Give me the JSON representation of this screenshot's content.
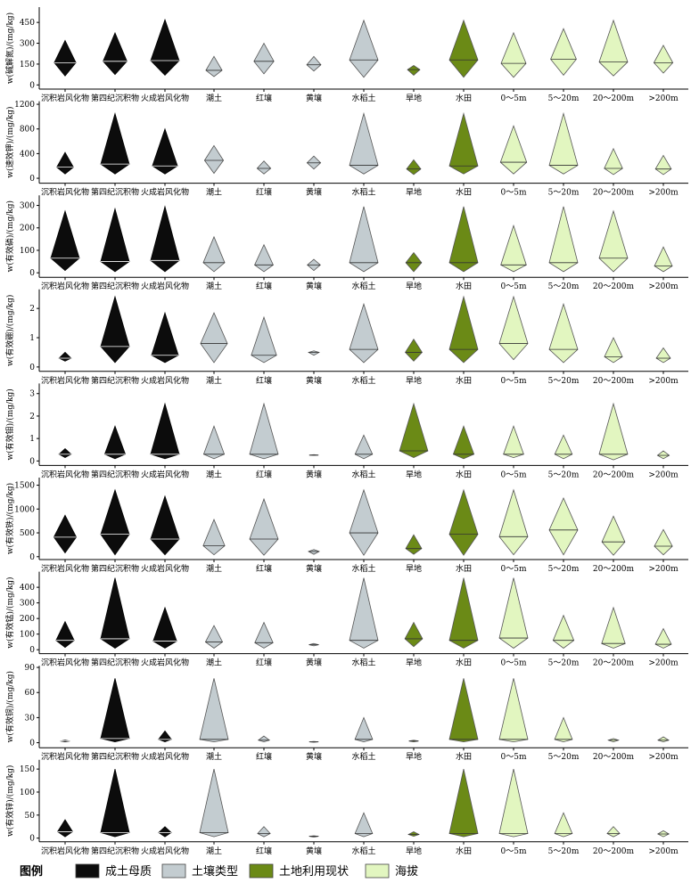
{
  "figure": {
    "categories": [
      "沉积岩风化物",
      "第四纪沉积物",
      "火成岩风化物",
      "潮土",
      "红壤",
      "黄壤",
      "水稻土",
      "旱地",
      "水田",
      "0～5m",
      "5～20m",
      "20～200m",
      ">200m"
    ],
    "category_groups": [
      0,
      0,
      0,
      1,
      1,
      1,
      1,
      2,
      2,
      3,
      3,
      3,
      3
    ],
    "group_colors": [
      "#0c0c0c",
      "#c3ccd0",
      "#6b8a16",
      "#e2f6c0"
    ],
    "legend": {
      "title": "图例",
      "items": [
        "成土母质",
        "土壤类型",
        "土地利用现状",
        "海拔"
      ]
    }
  },
  "chart_data": [
    {
      "type": "violin",
      "ylabel": "w(碱解氮)/(mg/kg)",
      "ylim": [
        -30,
        560
      ],
      "yticks": [
        0,
        150,
        300,
        450
      ],
      "series": [
        {
          "category": "沉积岩风化物",
          "min": 65,
          "max": 320,
          "median": 160
        },
        {
          "category": "第四纪沉积物",
          "min": 75,
          "max": 375,
          "median": 170
        },
        {
          "category": "火成岩风化物",
          "min": 70,
          "max": 470,
          "median": 175
        },
        {
          "category": "潮土",
          "min": 60,
          "max": 205,
          "median": 105
        },
        {
          "category": "红壤",
          "min": 80,
          "max": 300,
          "median": 170
        },
        {
          "category": "黄壤",
          "min": 100,
          "max": 205,
          "median": 145
        },
        {
          "category": "水稻土",
          "min": 55,
          "max": 465,
          "median": 180
        },
        {
          "category": "旱地",
          "min": 70,
          "max": 140,
          "median": 110
        },
        {
          "category": "水田",
          "min": 55,
          "max": 465,
          "median": 180
        },
        {
          "category": "0～5m",
          "min": 55,
          "max": 375,
          "median": 155
        },
        {
          "category": "5～20m",
          "min": 70,
          "max": 405,
          "median": 185
        },
        {
          "category": "20～200m",
          "min": 65,
          "max": 465,
          "median": 165
        },
        {
          "category": ">200m",
          "min": 85,
          "max": 285,
          "median": 160
        }
      ]
    },
    {
      "type": "violin",
      "ylabel": "w(速效钾)/(mg/kg)",
      "ylim": [
        -80,
        1250
      ],
      "yticks": [
        0,
        400,
        800,
        1200
      ],
      "series": [
        {
          "category": "沉积岩风化物",
          "min": 70,
          "max": 420,
          "median": 180
        },
        {
          "category": "第四纪沉积物",
          "min": 70,
          "max": 1050,
          "median": 230
        },
        {
          "category": "火成岩风化物",
          "min": 70,
          "max": 800,
          "median": 200
        },
        {
          "category": "潮土",
          "min": 80,
          "max": 530,
          "median": 290
        },
        {
          "category": "红壤",
          "min": 70,
          "max": 280,
          "median": 160
        },
        {
          "category": "黄壤",
          "min": 150,
          "max": 360,
          "median": 250
        },
        {
          "category": "水稻土",
          "min": 70,
          "max": 1050,
          "median": 210
        },
        {
          "category": "旱地",
          "min": 60,
          "max": 300,
          "median": 150
        },
        {
          "category": "水田",
          "min": 70,
          "max": 1050,
          "median": 200
        },
        {
          "category": "0～5m",
          "min": 70,
          "max": 850,
          "median": 260
        },
        {
          "category": "5～20m",
          "min": 70,
          "max": 1050,
          "median": 210
        },
        {
          "category": "20～200m",
          "min": 60,
          "max": 480,
          "median": 160
        },
        {
          "category": ">200m",
          "min": 60,
          "max": 370,
          "median": 150
        }
      ]
    },
    {
      "type": "violin",
      "ylabel": "w(有效磷)/(mg/kg)",
      "ylim": [
        -20,
        345
      ],
      "yticks": [
        0,
        100,
        200,
        300
      ],
      "series": [
        {
          "category": "沉积岩风化物",
          "min": 10,
          "max": 275,
          "median": 65
        },
        {
          "category": "第四纪沉积物",
          "min": 5,
          "max": 285,
          "median": 50
        },
        {
          "category": "火成岩风化物",
          "min": 5,
          "max": 295,
          "median": 55
        },
        {
          "category": "潮土",
          "min": 5,
          "max": 160,
          "median": 45
        },
        {
          "category": "红壤",
          "min": 5,
          "max": 125,
          "median": 35
        },
        {
          "category": "黄壤",
          "min": 10,
          "max": 60,
          "median": 35
        },
        {
          "category": "水稻土",
          "min": 5,
          "max": 295,
          "median": 45
        },
        {
          "category": "旱地",
          "min": 5,
          "max": 90,
          "median": 45
        },
        {
          "category": "水田",
          "min": 5,
          "max": 295,
          "median": 45
        },
        {
          "category": "0～5m",
          "min": 5,
          "max": 210,
          "median": 35
        },
        {
          "category": "5～20m",
          "min": 5,
          "max": 295,
          "median": 45
        },
        {
          "category": "20～200m",
          "min": 5,
          "max": 275,
          "median": 65
        },
        {
          "category": ">200m",
          "min": 5,
          "max": 115,
          "median": 30
        }
      ]
    },
    {
      "type": "violin",
      "ylabel": "w(有效硼)/(mg/kg)",
      "ylim": [
        -0.15,
        2.65
      ],
      "yticks": [
        0,
        1,
        2
      ],
      "series": [
        {
          "category": "沉积岩风化物",
          "min": 0.2,
          "max": 0.5,
          "median": 0.3
        },
        {
          "category": "第四纪沉积物",
          "min": 0.15,
          "max": 2.4,
          "median": 0.7
        },
        {
          "category": "火成岩风化物",
          "min": 0.15,
          "max": 1.85,
          "median": 0.4
        },
        {
          "category": "潮土",
          "min": 0.15,
          "max": 1.85,
          "median": 0.8
        },
        {
          "category": "红壤",
          "min": 0.15,
          "max": 1.7,
          "median": 0.4
        },
        {
          "category": "黄壤",
          "min": 0.4,
          "max": 0.55,
          "median": 0.5
        },
        {
          "category": "水稻土",
          "min": 0.15,
          "max": 2.15,
          "median": 0.6
        },
        {
          "category": "旱地",
          "min": 0.2,
          "max": 0.95,
          "median": 0.5
        },
        {
          "category": "水田",
          "min": 0.15,
          "max": 2.4,
          "median": 0.6
        },
        {
          "category": "0～5m",
          "min": 0.25,
          "max": 2.4,
          "median": 0.8
        },
        {
          "category": "5～20m",
          "min": 0.15,
          "max": 2.15,
          "median": 0.6
        },
        {
          "category": "20～200m",
          "min": 0.15,
          "max": 1.0,
          "median": 0.35
        },
        {
          "category": ">200m",
          "min": 0.15,
          "max": 0.65,
          "median": 0.3
        }
      ]
    },
    {
      "type": "violin",
      "ylabel": "w(有效钼)/(mg/kg)",
      "ylim": [
        -0.2,
        3.45
      ],
      "yticks": [
        0,
        1,
        2,
        3
      ],
      "series": [
        {
          "category": "沉积岩风化物",
          "min": 0.15,
          "max": 0.55,
          "median": 0.3
        },
        {
          "category": "第四纪沉积物",
          "min": 0.1,
          "max": 1.55,
          "median": 0.3
        },
        {
          "category": "火成岩风化物",
          "min": 0.1,
          "max": 2.55,
          "median": 0.3
        },
        {
          "category": "潮土",
          "min": 0.1,
          "max": 1.55,
          "median": 0.3
        },
        {
          "category": "红壤",
          "min": 0.1,
          "max": 2.55,
          "median": 0.3
        },
        {
          "category": "黄壤",
          "min": 0.25,
          "max": 0.28,
          "median": 0.26
        },
        {
          "category": "水稻土",
          "min": 0.1,
          "max": 1.15,
          "median": 0.3
        },
        {
          "category": "旱地",
          "min": 0.15,
          "max": 2.55,
          "median": 0.45
        },
        {
          "category": "水田",
          "min": 0.1,
          "max": 1.55,
          "median": 0.3
        },
        {
          "category": "0～5m",
          "min": 0.15,
          "max": 1.55,
          "median": 0.3
        },
        {
          "category": "5～20m",
          "min": 0.1,
          "max": 1.15,
          "median": 0.3
        },
        {
          "category": "20～200m",
          "min": 0.05,
          "max": 2.55,
          "median": 0.3
        },
        {
          "category": ">200m",
          "min": 0.1,
          "max": 0.45,
          "median": 0.25
        }
      ]
    },
    {
      "type": "violin",
      "ylabel": "w(有效铁)/(mg/kg)",
      "ylim": [
        -60,
        1660
      ],
      "yticks": [
        0,
        500,
        1000,
        1500
      ],
      "series": [
        {
          "category": "沉积岩风化物",
          "min": 80,
          "max": 870,
          "median": 410
        },
        {
          "category": "第四纪沉积物",
          "min": 40,
          "max": 1400,
          "median": 470
        },
        {
          "category": "火成岩风化物",
          "min": 40,
          "max": 1270,
          "median": 370
        },
        {
          "category": "潮土",
          "min": 40,
          "max": 780,
          "median": 230
        },
        {
          "category": "红壤",
          "min": 30,
          "max": 1210,
          "median": 370
        },
        {
          "category": "黄壤",
          "min": 50,
          "max": 150,
          "median": 110
        },
        {
          "category": "水稻土",
          "min": 30,
          "max": 1400,
          "median": 500
        },
        {
          "category": "旱地",
          "min": 50,
          "max": 460,
          "median": 170
        },
        {
          "category": "水田",
          "min": 30,
          "max": 1400,
          "median": 470
        },
        {
          "category": "0～5m",
          "min": 40,
          "max": 1400,
          "median": 420
        },
        {
          "category": "5～20m",
          "min": 40,
          "max": 1230,
          "median": 560
        },
        {
          "category": "20～200m",
          "min": 30,
          "max": 850,
          "median": 310
        },
        {
          "category": ">200m",
          "min": 40,
          "max": 570,
          "median": 220
        }
      ]
    },
    {
      "type": "violin",
      "ylabel": "w(有效锰)/(mg/kg)",
      "ylim": [
        -25,
        500
      ],
      "yticks": [
        0,
        100,
        200,
        300,
        400
      ],
      "series": [
        {
          "category": "沉积岩风化物",
          "min": 15,
          "max": 180,
          "median": 60
        },
        {
          "category": "第四纪沉积物",
          "min": 10,
          "max": 460,
          "median": 70
        },
        {
          "category": "火成岩风化物",
          "min": 10,
          "max": 270,
          "median": 55
        },
        {
          "category": "潮土",
          "min": 10,
          "max": 155,
          "median": 50
        },
        {
          "category": "红壤",
          "min": 10,
          "max": 175,
          "median": 45
        },
        {
          "category": "黄壤",
          "min": 25,
          "max": 40,
          "median": 32
        },
        {
          "category": "水稻土",
          "min": 10,
          "max": 460,
          "median": 60
        },
        {
          "category": "旱地",
          "min": 20,
          "max": 175,
          "median": 70
        },
        {
          "category": "水田",
          "min": 10,
          "max": 460,
          "median": 60
        },
        {
          "category": "0～5m",
          "min": 10,
          "max": 460,
          "median": 75
        },
        {
          "category": "5～20m",
          "min": 10,
          "max": 220,
          "median": 60
        },
        {
          "category": "20～200m",
          "min": 10,
          "max": 270,
          "median": 40
        },
        {
          "category": ">200m",
          "min": 10,
          "max": 135,
          "median": 35
        }
      ]
    },
    {
      "type": "violin",
      "ylabel": "w(有效铜)/(mg/kg)",
      "ylim": [
        -6,
        92
      ],
      "yticks": [
        0,
        30,
        60,
        90
      ],
      "series": [
        {
          "category": "沉积岩风化物",
          "min": 1,
          "max": 3,
          "median": 2
        },
        {
          "category": "第四纪沉积物",
          "min": 1,
          "max": 77,
          "median": 5
        },
        {
          "category": "火成岩风化物",
          "min": 1,
          "max": 14,
          "median": 4
        },
        {
          "category": "潮土",
          "min": 1,
          "max": 77,
          "median": 4
        },
        {
          "category": "红壤",
          "min": 1,
          "max": 8,
          "median": 3
        },
        {
          "category": "黄壤",
          "min": 0.5,
          "max": 1.5,
          "median": 1
        },
        {
          "category": "水稻土",
          "min": 1,
          "max": 30,
          "median": 4
        },
        {
          "category": "旱地",
          "min": 1,
          "max": 3,
          "median": 2
        },
        {
          "category": "水田",
          "min": 1,
          "max": 77,
          "median": 4
        },
        {
          "category": "0～5m",
          "min": 1,
          "max": 77,
          "median": 4
        },
        {
          "category": "5～20m",
          "min": 1,
          "max": 30,
          "median": 4
        },
        {
          "category": "20～200m",
          "min": 1,
          "max": 5,
          "median": 3
        },
        {
          "category": ">200m",
          "min": 1,
          "max": 7,
          "median": 3
        }
      ]
    },
    {
      "type": "violin",
      "ylabel": "w(有效锌)/(mg/kg)",
      "ylim": [
        -8,
        170
      ],
      "yticks": [
        0,
        50,
        100,
        150
      ],
      "series": [
        {
          "category": "沉积岩风化物",
          "min": 3,
          "max": 40,
          "median": 14
        },
        {
          "category": "第四纪沉积物",
          "min": 3,
          "max": 150,
          "median": 12
        },
        {
          "category": "火成岩风化物",
          "min": 3,
          "max": 25,
          "median": 12
        },
        {
          "category": "潮土",
          "min": 3,
          "max": 150,
          "median": 12
        },
        {
          "category": "红壤",
          "min": 3,
          "max": 25,
          "median": 10
        },
        {
          "category": "黄壤",
          "min": 2,
          "max": 5,
          "median": 4
        },
        {
          "category": "水稻土",
          "min": 3,
          "max": 55,
          "median": 10
        },
        {
          "category": "旱地",
          "min": 4,
          "max": 14,
          "median": 8
        },
        {
          "category": "水田",
          "min": 3,
          "max": 150,
          "median": 10
        },
        {
          "category": "0～5m",
          "min": 3,
          "max": 150,
          "median": 10
        },
        {
          "category": "5～20m",
          "min": 3,
          "max": 55,
          "median": 10
        },
        {
          "category": "20～200m",
          "min": 3,
          "max": 25,
          "median": 10
        },
        {
          "category": ">200m",
          "min": 3,
          "max": 16,
          "median": 9
        }
      ]
    }
  ]
}
